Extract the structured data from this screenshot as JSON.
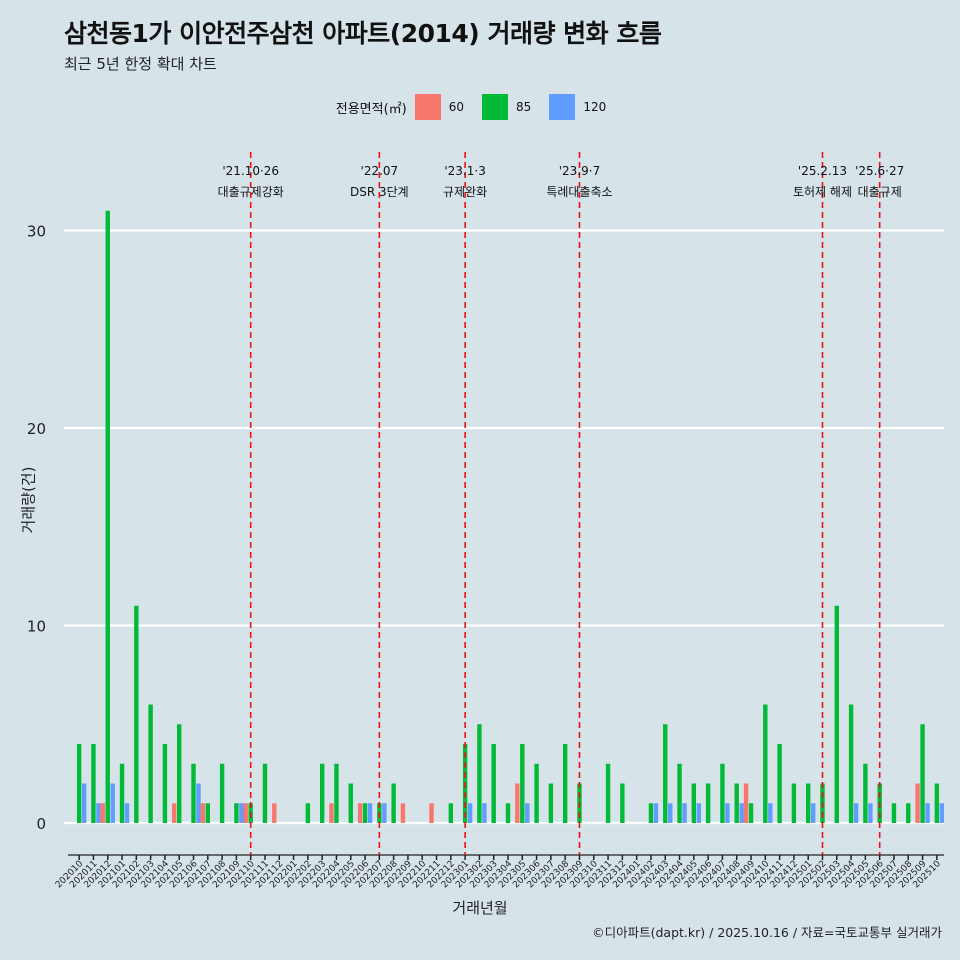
{
  "title": "삼천동1가 이안전주삼천 아파트(2014) 거래량 변화 흐름",
  "subtitle": "최근 5년 한정 확대 차트",
  "caption": "©디아파트(dapt.kr) / 2025.10.16 / 자료=국토교통부 실거래가",
  "legend": {
    "title": "전용면적(㎡)",
    "items": [
      {
        "label": "60",
        "color": "#f8766d"
      },
      {
        "label": "85",
        "color": "#00ba38"
      },
      {
        "label": "120",
        "color": "#619cff"
      }
    ]
  },
  "chart_data": {
    "type": "bar",
    "title": "삼천동1가 이안전주삼천 아파트(2014) 거래량 변화 흐름",
    "xlabel": "거래년월",
    "ylabel": "거래량(건)",
    "ylim": [
      0,
      32
    ],
    "yticks": [
      0,
      10,
      20,
      30
    ],
    "grid": true,
    "legend_position": "top",
    "categories": [
      "202010",
      "202011",
      "202012",
      "202101",
      "202102",
      "202103",
      "202104",
      "202105",
      "202106",
      "202107",
      "202108",
      "202109",
      "202110",
      "202111",
      "202112",
      "202201",
      "202202",
      "202203",
      "202204",
      "202205",
      "202206",
      "202207",
      "202208",
      "202209",
      "202210",
      "202211",
      "202212",
      "202301",
      "202302",
      "202303",
      "202304",
      "202305",
      "202306",
      "202307",
      "202308",
      "202309",
      "202310",
      "202311",
      "202312",
      "202401",
      "202402",
      "202403",
      "202404",
      "202405",
      "202406",
      "202407",
      "202408",
      "202409",
      "202410",
      "202411",
      "202412",
      "202501",
      "202502",
      "202503",
      "202504",
      "202505",
      "202506",
      "202507",
      "202508",
      "202509",
      "202510"
    ],
    "series": [
      {
        "name": "60",
        "color": "#f8766d",
        "values": [
          0,
          0,
          1,
          0,
          0,
          0,
          0,
          1,
          0,
          1,
          0,
          0,
          1,
          0,
          1,
          0,
          0,
          0,
          1,
          0,
          1,
          0,
          0,
          1,
          0,
          1,
          0,
          0,
          0,
          0,
          0,
          2,
          0,
          0,
          0,
          0,
          0,
          0,
          0,
          0,
          0,
          0,
          0,
          0,
          0,
          0,
          0,
          2,
          0,
          0,
          0,
          0,
          0,
          0,
          0,
          0,
          0,
          0,
          0,
          2,
          0
        ]
      },
      {
        "name": "85",
        "color": "#00ba38",
        "values": [
          4,
          4,
          31,
          3,
          11,
          6,
          4,
          5,
          3,
          1,
          3,
          1,
          1,
          3,
          0,
          0,
          1,
          3,
          3,
          2,
          1,
          1,
          2,
          0,
          0,
          0,
          1,
          4,
          5,
          4,
          1,
          4,
          3,
          2,
          4,
          2,
          0,
          3,
          2,
          0,
          1,
          5,
          3,
          2,
          2,
          3,
          2,
          1,
          6,
          4,
          2,
          2,
          2,
          11,
          6,
          3,
          2,
          1,
          1,
          5,
          2
        ]
      },
      {
        "name": "120",
        "color": "#619cff",
        "values": [
          2,
          1,
          2,
          1,
          0,
          0,
          0,
          0,
          2,
          0,
          0,
          1,
          0,
          0,
          0,
          0,
          0,
          0,
          0,
          0,
          1,
          1,
          0,
          0,
          0,
          0,
          0,
          1,
          1,
          0,
          0,
          1,
          0,
          0,
          0,
          0,
          0,
          0,
          0,
          0,
          1,
          1,
          1,
          1,
          0,
          1,
          1,
          0,
          1,
          0,
          0,
          1,
          0,
          0,
          1,
          1,
          0,
          0,
          0,
          1,
          1
        ]
      }
    ],
    "annotations": [
      {
        "category": "202110",
        "date": "'21.10·26",
        "label": "대출규제강화"
      },
      {
        "category": "202207",
        "date": "'22.07",
        "label": "DSR 3단계"
      },
      {
        "category": "202301",
        "date": "'23.1·3",
        "label": "규제완화"
      },
      {
        "category": "202309",
        "date": "'23.9·7",
        "label": "특례대출축소"
      },
      {
        "category": "202502",
        "date": "'25.2.13",
        "label": "토허제 해제"
      },
      {
        "category": "202506",
        "date": "'25.6·27",
        "label": "대출규제"
      }
    ]
  }
}
